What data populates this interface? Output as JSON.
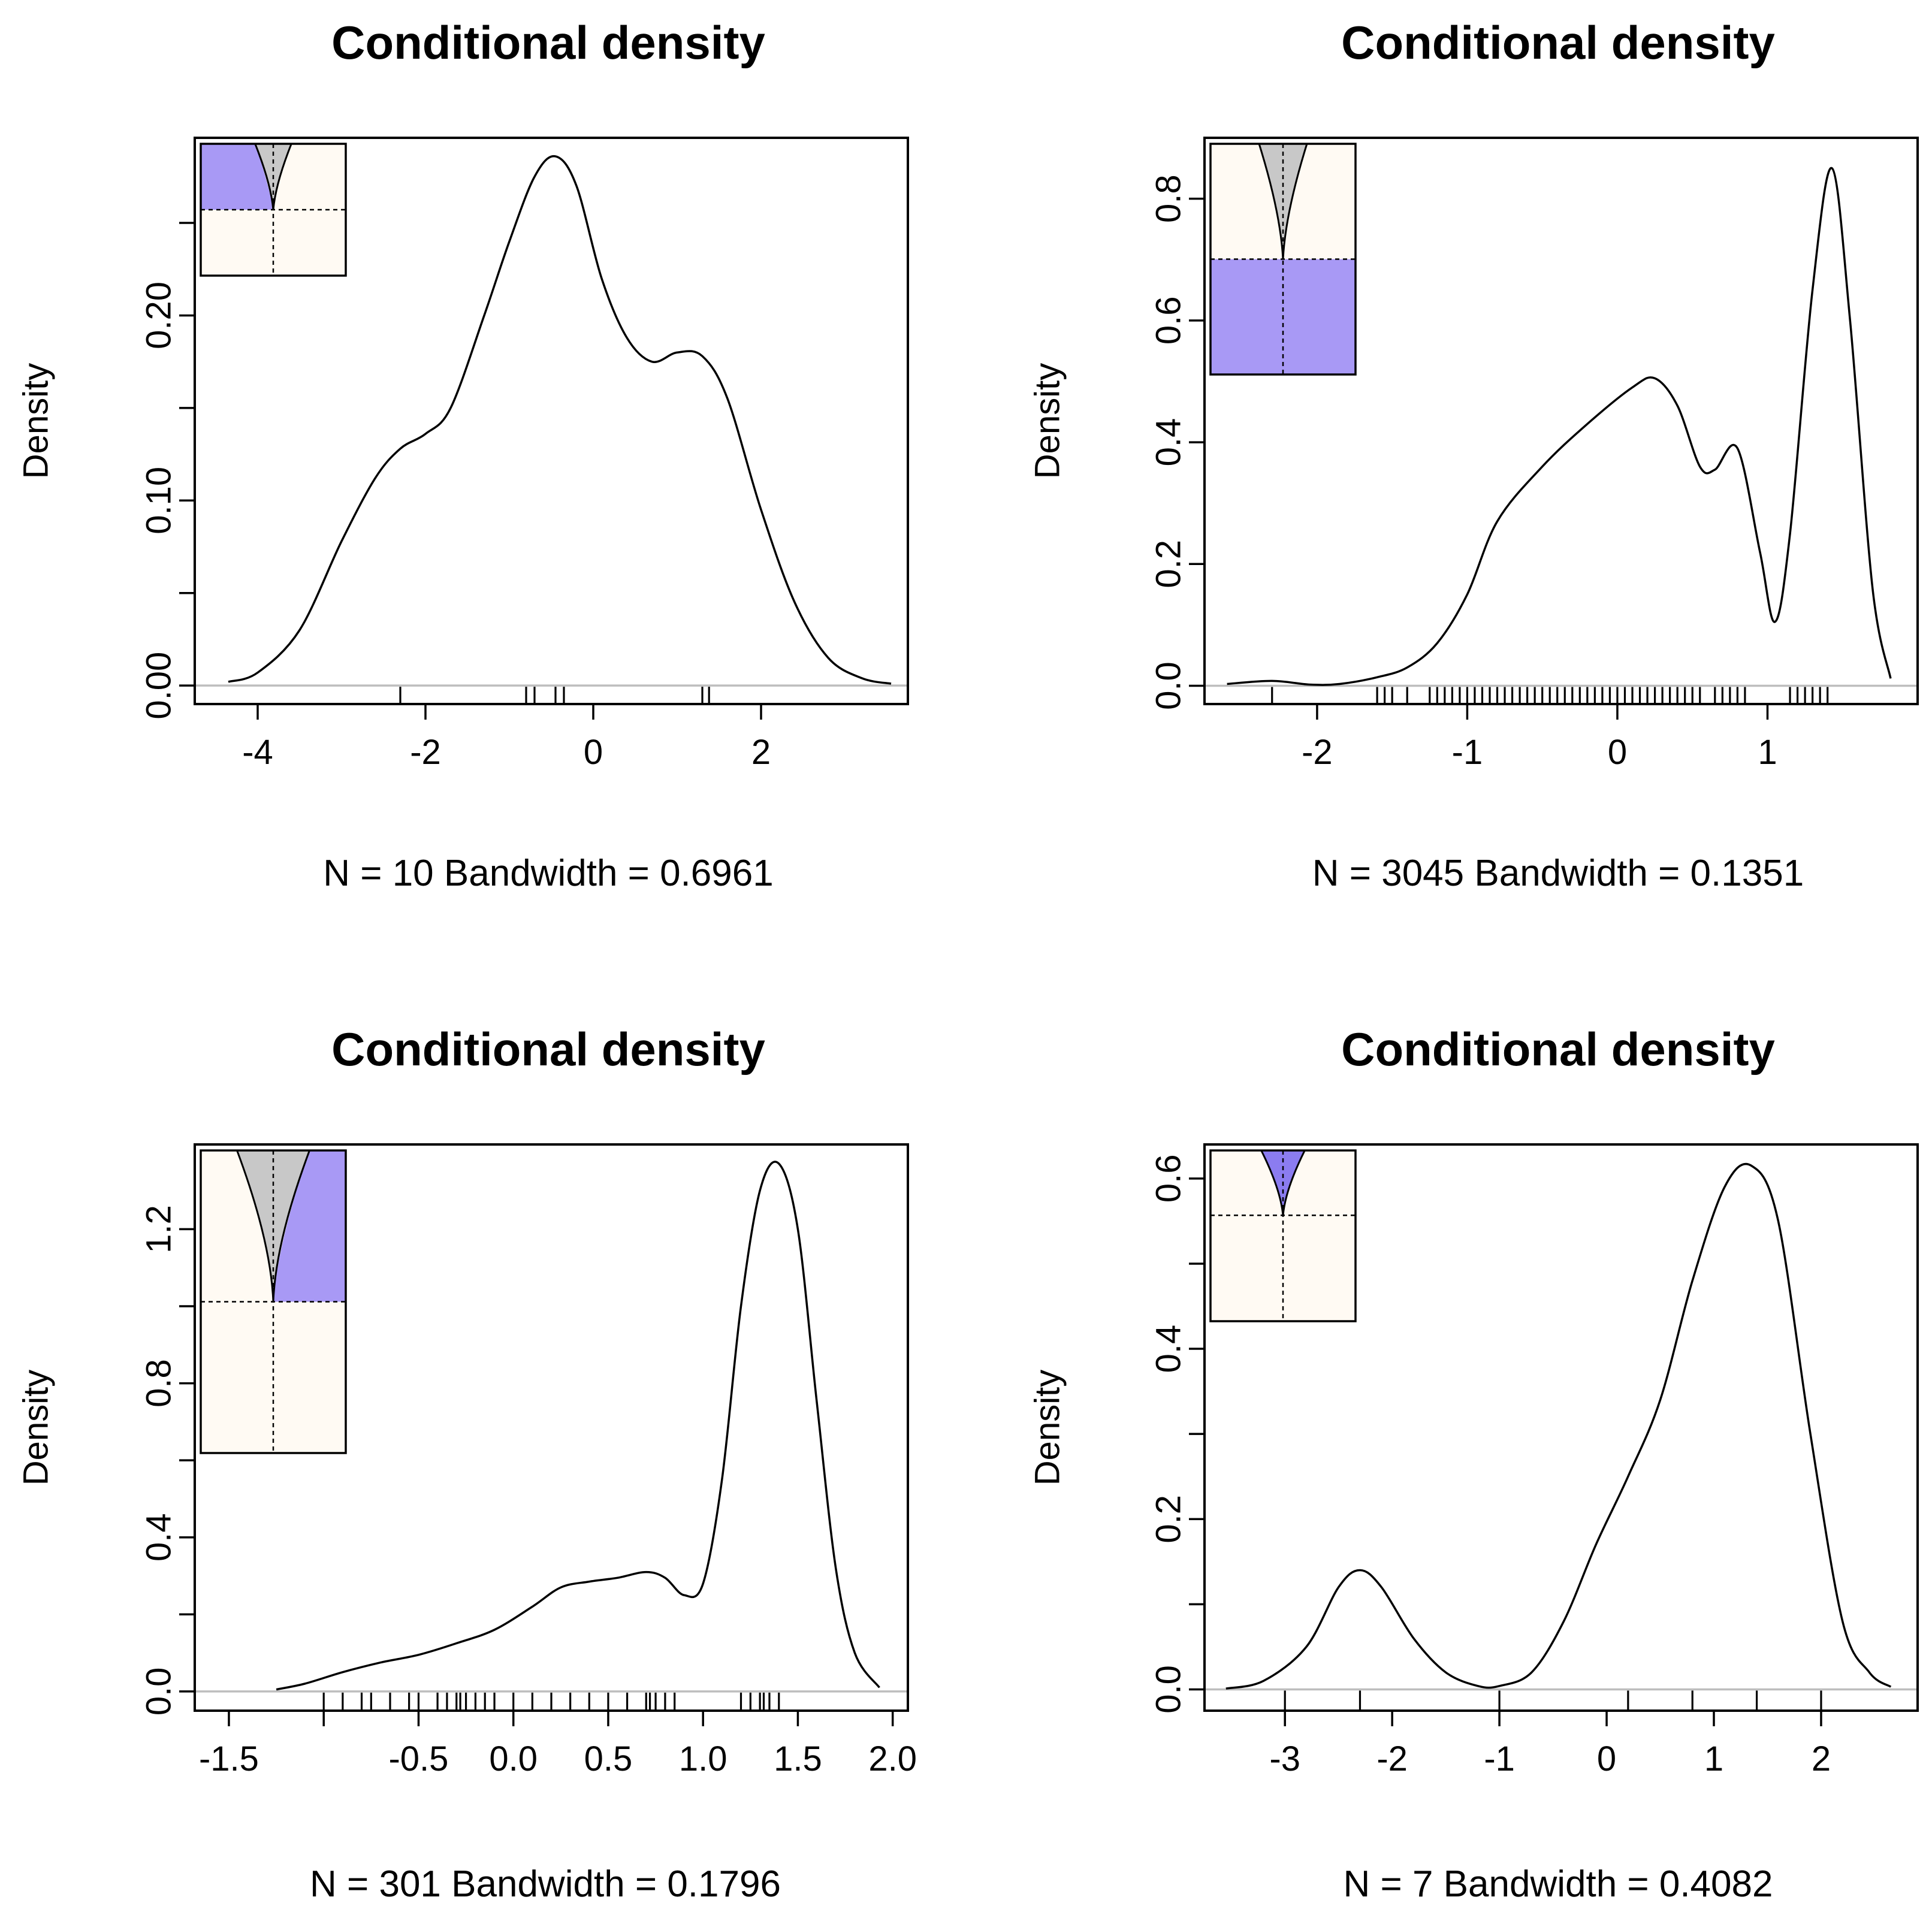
{
  "colors": {
    "inset_bg": "#fffaf3",
    "highlight": "#a899f5",
    "highlight_dark": "#8b7cf0",
    "cone": "#c8c8c8",
    "zero_line": "#bebebe"
  },
  "chart_data": [
    {
      "type": "line",
      "title": "Conditional density",
      "ylabel": "Density",
      "xlabel": "N = 10   Bandwidth = 0.6961",
      "xlim": [
        -4.75,
        3.75
      ],
      "ylim": [
        -0.01,
        0.296
      ],
      "xticks": [
        -4,
        -2,
        0,
        2
      ],
      "xtick_labels": [
        "-4",
        "-2",
        "0",
        "2"
      ],
      "yticks": [
        0.0,
        0.05,
        0.1,
        0.15,
        0.2,
        0.25
      ],
      "ytick_labels": [
        "0.00",
        "",
        "0.10",
        "",
        "0.20",
        ""
      ],
      "x": [
        -4.35,
        -4.0,
        -3.5,
        -3.0,
        -2.6,
        -2.3,
        -2.0,
        -1.7,
        -1.3,
        -1.0,
        -0.7,
        -0.45,
        -0.2,
        0.1,
        0.4,
        0.7,
        1.0,
        1.3,
        1.6,
        2.0,
        2.4,
        2.8,
        3.2,
        3.55
      ],
      "y": [
        0.002,
        0.007,
        0.03,
        0.078,
        0.112,
        0.128,
        0.136,
        0.15,
        0.2,
        0.24,
        0.275,
        0.286,
        0.27,
        0.22,
        0.188,
        0.175,
        0.18,
        0.178,
        0.155,
        0.095,
        0.045,
        0.015,
        0.004,
        0.001
      ],
      "rug": [
        -2.3,
        -0.8,
        -0.7,
        -0.45,
        -0.35,
        1.3,
        1.38
      ],
      "inset": {
        "split_frac": 0.5,
        "cone_ratio": 0.25,
        "fill": "top-left",
        "fill_color": "highlight"
      }
    },
    {
      "type": "line",
      "title": "Conditional density",
      "ylabel": "Density",
      "xlabel": "N = 3045   Bandwidth = 0.1351",
      "xlim": [
        -2.75,
        2.0
      ],
      "ylim": [
        -0.03,
        0.9
      ],
      "xticks": [
        -2,
        -1,
        0,
        1
      ],
      "xtick_labels": [
        "-2",
        "-1",
        "0",
        "1"
      ],
      "yticks": [
        0.0,
        0.2,
        0.4,
        0.6,
        0.8
      ],
      "ytick_labels": [
        "0.0",
        "0.2",
        "0.4",
        "0.6",
        "0.8"
      ],
      "x": [
        -2.6,
        -2.3,
        -2.05,
        -1.85,
        -1.6,
        -1.4,
        -1.2,
        -1.0,
        -0.8,
        -0.5,
        -0.2,
        0.1,
        0.25,
        0.4,
        0.55,
        0.65,
        0.8,
        0.95,
        1.05,
        1.15,
        1.3,
        1.43,
        1.55,
        1.7,
        1.82
      ],
      "y": [
        0.003,
        0.008,
        0.002,
        0.003,
        0.014,
        0.03,
        0.07,
        0.15,
        0.27,
        0.36,
        0.43,
        0.49,
        0.505,
        0.46,
        0.36,
        0.355,
        0.39,
        0.22,
        0.105,
        0.25,
        0.65,
        0.85,
        0.6,
        0.16,
        0.012
      ],
      "rug": [
        -2.3,
        -1.6,
        -1.55,
        -1.5,
        -1.4,
        -1.25,
        -1.2,
        -1.15,
        -1.1,
        -1.05,
        -1.0,
        -0.95,
        -0.9,
        -0.85,
        -0.8,
        -0.75,
        -0.7,
        -0.65,
        -0.6,
        -0.55,
        -0.5,
        -0.45,
        -0.4,
        -0.35,
        -0.3,
        -0.25,
        -0.2,
        -0.15,
        -0.1,
        -0.05,
        0.0,
        0.05,
        0.1,
        0.15,
        0.2,
        0.25,
        0.3,
        0.35,
        0.4,
        0.45,
        0.5,
        0.55,
        0.65,
        0.7,
        0.75,
        0.8,
        0.85,
        1.15,
        1.2,
        1.25,
        1.3,
        1.35,
        1.4
      ],
      "inset": {
        "split_frac": 0.5,
        "cone_ratio": 0.33,
        "fill": "bottom",
        "fill_color": "highlight"
      }
    },
    {
      "type": "line",
      "title": "Conditional density",
      "ylabel": "Density",
      "xlabel": "N = 301   Bandwidth = 0.1796",
      "xlim": [
        -1.68,
        2.08
      ],
      "ylim": [
        -0.05,
        1.42
      ],
      "xticks": [
        -1.5,
        -1.0,
        -0.5,
        0.0,
        0.5,
        1.0,
        1.5,
        2.0
      ],
      "xtick_labels": [
        "-1.5",
        "",
        "-0.5",
        "0.0",
        "0.5",
        "1.0",
        "1.5",
        "2.0"
      ],
      "yticks": [
        0.0,
        0.2,
        0.4,
        0.6,
        0.8,
        1.0,
        1.2
      ],
      "ytick_labels": [
        "0.0",
        "",
        "0.4",
        "",
        "0.8",
        "",
        "1.2"
      ],
      "x": [
        -1.25,
        -1.1,
        -0.9,
        -0.7,
        -0.5,
        -0.3,
        -0.1,
        0.1,
        0.25,
        0.4,
        0.55,
        0.7,
        0.8,
        0.9,
        1.0,
        1.1,
        1.2,
        1.3,
        1.4,
        1.5,
        1.6,
        1.7,
        1.8,
        1.93
      ],
      "y": [
        0.005,
        0.02,
        0.05,
        0.075,
        0.095,
        0.125,
        0.16,
        0.22,
        0.27,
        0.285,
        0.295,
        0.31,
        0.295,
        0.25,
        0.28,
        0.55,
        1.0,
        1.3,
        1.37,
        1.2,
        0.75,
        0.32,
        0.1,
        0.01
      ],
      "rug": [
        -1.0,
        -0.9,
        -0.8,
        -0.75,
        -0.65,
        -0.55,
        -0.5,
        -0.4,
        -0.35,
        -0.3,
        -0.28,
        -0.25,
        -0.2,
        -0.15,
        -0.1,
        0.0,
        0.1,
        0.2,
        0.3,
        0.4,
        0.5,
        0.6,
        0.7,
        0.72,
        0.75,
        0.8,
        0.85,
        1.2,
        1.25,
        1.3,
        1.32,
        1.35,
        1.4
      ],
      "inset": {
        "split_frac": 0.5,
        "cone_ratio": 0.5,
        "fill": "top-right",
        "fill_color": "highlight"
      }
    },
    {
      "type": "line",
      "title": "Conditional density",
      "ylabel": "Density",
      "xlabel": "N = 7   Bandwidth = 0.4082",
      "xlim": [
        -3.75,
        2.9
      ],
      "ylim": [
        -0.025,
        0.64
      ],
      "xticks": [
        -3,
        -2,
        -1,
        0,
        1,
        2
      ],
      "xtick_labels": [
        "-3",
        "-2",
        "-1",
        "0",
        "1",
        "2"
      ],
      "yticks": [
        0.0,
        0.1,
        0.2,
        0.3,
        0.4,
        0.5,
        0.6
      ],
      "ytick_labels": [
        "0.0",
        "",
        "0.2",
        "",
        "0.4",
        "",
        "0.6"
      ],
      "x": [
        -3.55,
        -3.2,
        -2.8,
        -2.5,
        -2.3,
        -2.1,
        -1.8,
        -1.5,
        -1.2,
        -1.0,
        -0.7,
        -0.4,
        -0.1,
        0.2,
        0.5,
        0.8,
        1.1,
        1.35,
        1.6,
        1.9,
        2.2,
        2.45,
        2.65
      ],
      "y": [
        0.001,
        0.01,
        0.05,
        0.12,
        0.14,
        0.12,
        0.06,
        0.02,
        0.004,
        0.004,
        0.02,
        0.08,
        0.17,
        0.25,
        0.34,
        0.48,
        0.59,
        0.615,
        0.55,
        0.3,
        0.08,
        0.02,
        0.003
      ],
      "rug": [
        -3.0,
        -2.3,
        -1.0,
        0.2,
        0.8,
        1.4,
        2.0
      ],
      "inset": {
        "split_frac": 0.38,
        "cone_ratio": 0.3,
        "fill": "cone",
        "fill_color": "highlight_dark"
      }
    }
  ]
}
